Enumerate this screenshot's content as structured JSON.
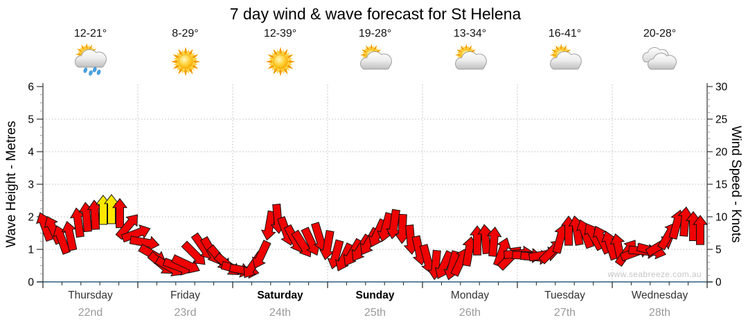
{
  "title": "7 day wind & wave forecast for St Helena",
  "watermark": "www.seabreeze.com.au",
  "axes": {
    "left_label": "Wave Height - Metres",
    "right_label": "Wind Speed - Knots",
    "left_ticks": [
      0,
      1,
      2,
      3,
      4,
      5,
      6
    ],
    "right_ticks": [
      0,
      5,
      10,
      15,
      20,
      25,
      30
    ]
  },
  "days": [
    {
      "name": "Thursday",
      "date": "22nd",
      "temps": "12-21°",
      "icon": "sun-showers",
      "weekend": false
    },
    {
      "name": "Friday",
      "date": "23rd",
      "temps": "8-29°",
      "icon": "sunny",
      "weekend": false
    },
    {
      "name": "Saturday",
      "date": "24th",
      "temps": "12-39°",
      "icon": "sunny",
      "weekend": true
    },
    {
      "name": "Sunday",
      "date": "25th",
      "temps": "19-28°",
      "icon": "partly-cloudy",
      "weekend": true
    },
    {
      "name": "Monday",
      "date": "26th",
      "temps": "13-34°",
      "icon": "partly-cloudy",
      "weekend": false
    },
    {
      "name": "Tuesday",
      "date": "27th",
      "temps": "16-41°",
      "icon": "partly-cloudy",
      "weekend": false
    },
    {
      "name": "Wednesday",
      "date": "28th",
      "temps": "20-28°",
      "icon": "cloudy",
      "weekend": false
    }
  ],
  "colors": {
    "arrow_red": "#ee0202",
    "arrow_yellow": "#ffe800",
    "x_axis_line": "#2b5d7d",
    "axis_line": "#333333",
    "grid_line": "#b8b8b8",
    "tick_minor": "#999999",
    "day_name": "#333333",
    "day_date": "#9a9a9a",
    "watermark": "#c6c6c6",
    "title": "#000000"
  },
  "chart_data": {
    "type": "wind-arrows",
    "title": "7 day wind & wave forecast for St Helena",
    "x_categories": [
      "Thursday 22nd",
      "Friday 23rd",
      "Saturday 24th",
      "Sunday 25th",
      "Monday 26th",
      "Tuesday 27th",
      "Wednesday 28th"
    ],
    "y_left_axis": {
      "label": "Wave Height - Metres",
      "min": 0,
      "max": 6,
      "major_tick": 1
    },
    "y_right_axis": {
      "label": "Wind Speed - Knots",
      "min": 0,
      "max": 30,
      "major_tick": 5
    },
    "grid": "dotted, horizontal each metre, vertical each day boundary",
    "legend": "none",
    "arrow_format": [
      "x_px",
      "wind_speed_knots",
      "direction_deg_cw_from_up",
      "color_flag_y_means_yellow"
    ],
    "arrows": [
      [
        65,
        11.0,
        -20
      ],
      [
        77,
        10.5,
        -25
      ],
      [
        89,
        9.0,
        -20
      ],
      [
        101,
        9.5,
        -12
      ],
      [
        113,
        11.5,
        -8
      ],
      [
        125,
        12.3,
        -5
      ],
      [
        137,
        12.6,
        -3
      ],
      [
        149,
        13.3,
        0,
        "y"
      ],
      [
        161,
        13.4,
        0,
        "y"
      ],
      [
        173,
        12.8,
        0
      ],
      [
        185,
        11.0,
        40
      ],
      [
        197,
        9.2,
        70
      ],
      [
        209,
        7.5,
        100
      ],
      [
        221,
        6.2,
        120
      ],
      [
        233,
        5.0,
        130
      ],
      [
        245,
        4.3,
        120
      ],
      [
        257,
        4.1,
        110
      ],
      [
        269,
        4.6,
        115
      ],
      [
        281,
        6.6,
        135
      ],
      [
        293,
        7.8,
        145
      ],
      [
        305,
        7.2,
        150
      ],
      [
        317,
        6.0,
        140
      ],
      [
        329,
        4.8,
        130
      ],
      [
        341,
        3.6,
        105
      ],
      [
        353,
        3.2,
        100
      ],
      [
        365,
        4.6,
        215
      ],
      [
        377,
        6.6,
        205
      ],
      [
        389,
        11.0,
        190
      ],
      [
        401,
        12.0,
        175
      ],
      [
        413,
        10.2,
        160
      ],
      [
        425,
        9.0,
        152
      ],
      [
        437,
        8.2,
        148
      ],
      [
        449,
        8.6,
        155
      ],
      [
        461,
        9.3,
        163
      ],
      [
        473,
        8.0,
        190
      ],
      [
        485,
        6.6,
        195
      ],
      [
        497,
        6.2,
        205
      ],
      [
        509,
        6.9,
        210
      ],
      [
        521,
        7.6,
        212
      ],
      [
        533,
        8.6,
        210
      ],
      [
        545,
        9.9,
        205
      ],
      [
        557,
        10.8,
        195
      ],
      [
        569,
        11.2,
        188
      ],
      [
        581,
        10.4,
        182
      ],
      [
        593,
        8.8,
        175
      ],
      [
        605,
        7.2,
        168
      ],
      [
        617,
        5.9,
        165
      ],
      [
        629,
        4.9,
        185
      ],
      [
        641,
        4.3,
        205
      ],
      [
        653,
        4.6,
        195
      ],
      [
        665,
        5.6,
        25
      ],
      [
        677,
        7.1,
        10
      ],
      [
        689,
        8.6,
        0
      ],
      [
        701,
        8.9,
        -5
      ],
      [
        713,
        8.5,
        5
      ],
      [
        725,
        7.1,
        20
      ],
      [
        737,
        6.1,
        45
      ],
      [
        749,
        5.6,
        85
      ],
      [
        761,
        5.2,
        92
      ],
      [
        773,
        5.1,
        95
      ],
      [
        785,
        5.6,
        80
      ],
      [
        797,
        7.1,
        45
      ],
      [
        809,
        9.1,
        15
      ],
      [
        821,
        10.1,
        0
      ],
      [
        833,
        10.3,
        -10
      ],
      [
        845,
        9.9,
        -20
      ],
      [
        857,
        9.5,
        -30
      ],
      [
        869,
        9.0,
        -25
      ],
      [
        881,
        8.1,
        -18
      ],
      [
        893,
        7.6,
        -12
      ],
      [
        905,
        7.0,
        35
      ],
      [
        917,
        6.3,
        70
      ],
      [
        929,
        6.0,
        95
      ],
      [
        941,
        6.4,
        105
      ],
      [
        953,
        7.6,
        60
      ],
      [
        965,
        9.6,
        30
      ],
      [
        977,
        11.3,
        15
      ],
      [
        989,
        11.6,
        5
      ],
      [
        1001,
        10.8,
        0
      ],
      [
        1011,
        10.2,
        0
      ]
    ]
  }
}
